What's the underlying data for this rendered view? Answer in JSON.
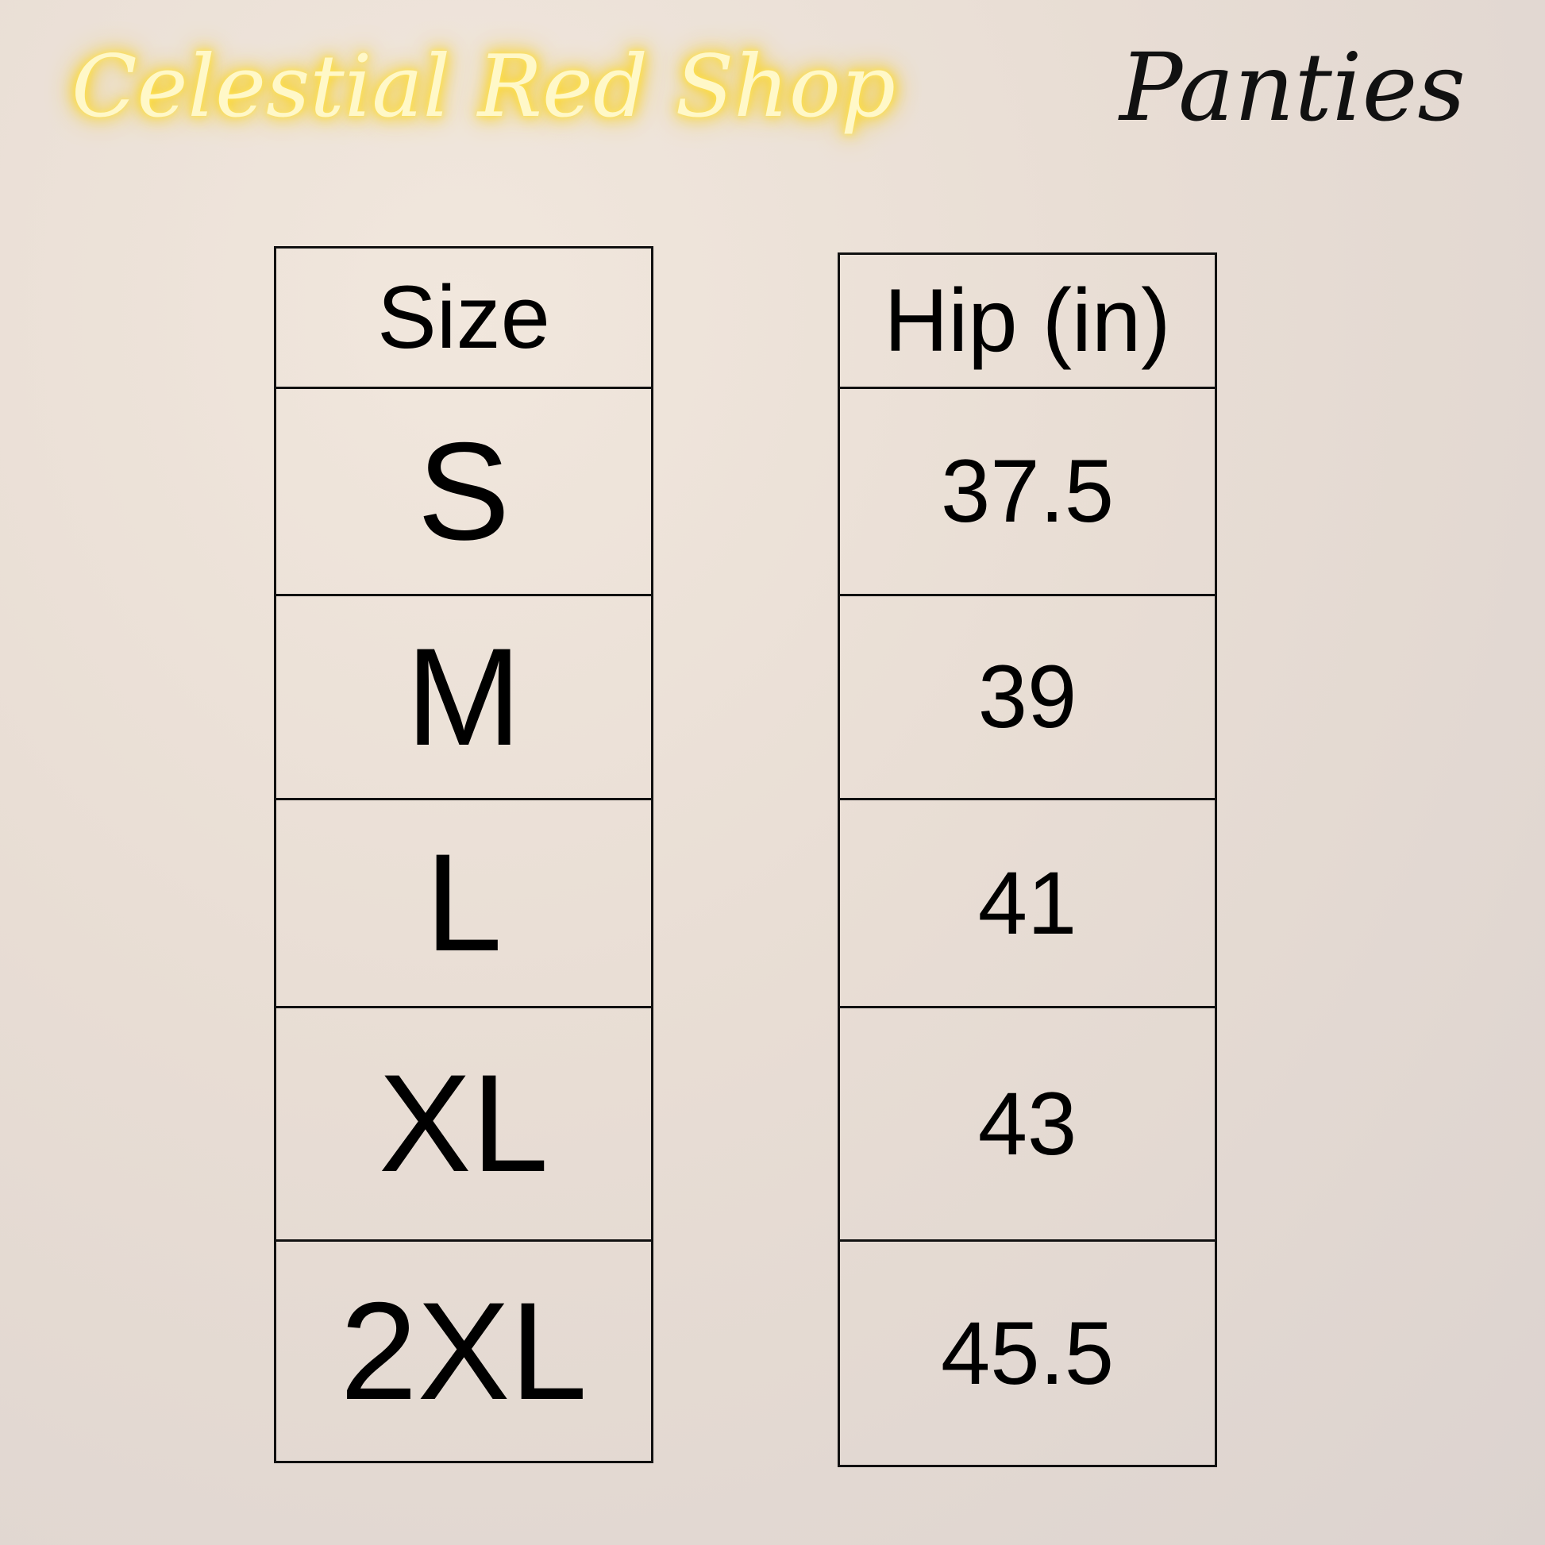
{
  "header": {
    "brand": "Celestial Red Shop",
    "product": "Panties",
    "brand_color": "#ffe45a"
  },
  "size_table": {
    "columns": [
      "Size",
      "Hip (in)"
    ],
    "rows": [
      {
        "size": "S",
        "hip": "37.5"
      },
      {
        "size": "M",
        "hip": "39"
      },
      {
        "size": "L",
        "hip": "41"
      },
      {
        "size": "XL",
        "hip": "43"
      },
      {
        "size": "2XL",
        "hip": "45.5"
      }
    ]
  }
}
